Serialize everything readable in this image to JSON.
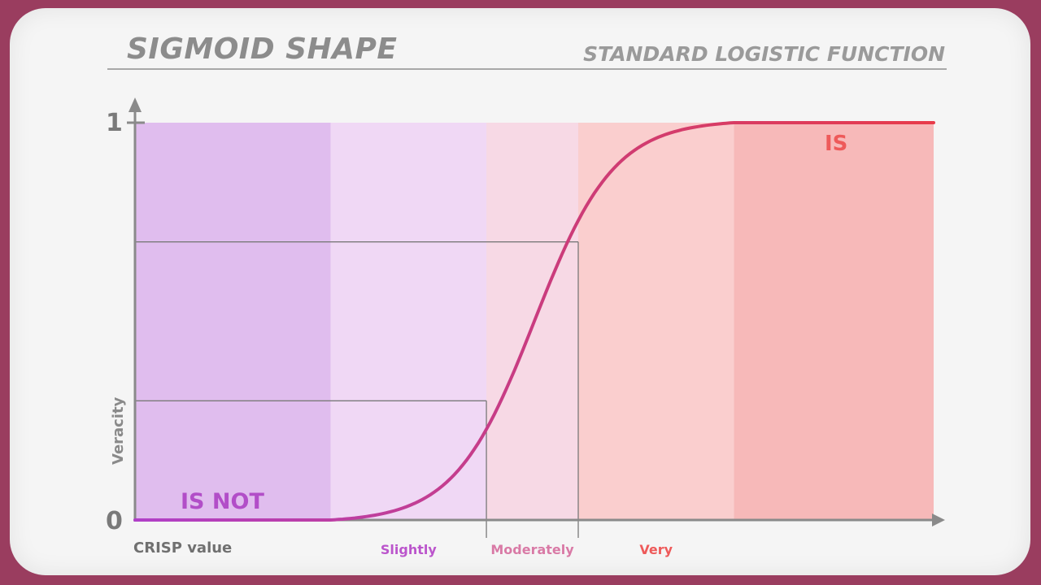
{
  "header": {
    "title": "SIGMOID SHAPE",
    "subtitle": "STANDARD LOGISTIC FUNCTION"
  },
  "chart_data": {
    "type": "line",
    "title": "SIGMOID SHAPE",
    "subtitle": "STANDARD LOGISTIC FUNCTION",
    "xlabel": "CRISP value",
    "ylabel": "Veracity",
    "ylim": [
      0,
      1
    ],
    "y_ticks": [
      "0",
      "1"
    ],
    "grid": false,
    "region_labels": {
      "low": "IS NOT",
      "high": "IS"
    },
    "zones": [
      {
        "name": "",
        "label": "",
        "x_start": 0.0,
        "x_end": 0.245,
        "color": "#dcb3ec"
      },
      {
        "name": "",
        "label": "Slightly",
        "x_start": 0.245,
        "x_end": 0.44,
        "color": "#eed2f4"
      },
      {
        "name": "",
        "label": "Moderately",
        "x_start": 0.44,
        "x_end": 0.555,
        "color": "#f7d3e2"
      },
      {
        "name": "",
        "label": "Very",
        "x_start": 0.555,
        "x_end": 0.75,
        "color": "#fac7c7"
      },
      {
        "name": "",
        "label": "",
        "x_start": 0.75,
        "x_end": 1.0,
        "color": "#f7aeae"
      }
    ],
    "zone_label_colors": {
      "Slightly": "#bb55cc",
      "Moderately": "#d97aa6",
      "Very": "#ee5a5a"
    },
    "markers": [
      {
        "x": 0.44,
        "y": 0.3
      },
      {
        "x": 0.555,
        "y": 0.7
      }
    ],
    "curve": {
      "x_min": 0,
      "x_max": 1,
      "center": 0.5,
      "steepness": 0.22,
      "flat_end": 0.75
    },
    "colors": {
      "curve_low": "#b040c8",
      "curve_mid": "#cc3c78",
      "curve_high": "#e83c4a",
      "axis": "#8a8a8a",
      "is_not": "#b24ec8",
      "is": "#ee5a5a"
    }
  }
}
